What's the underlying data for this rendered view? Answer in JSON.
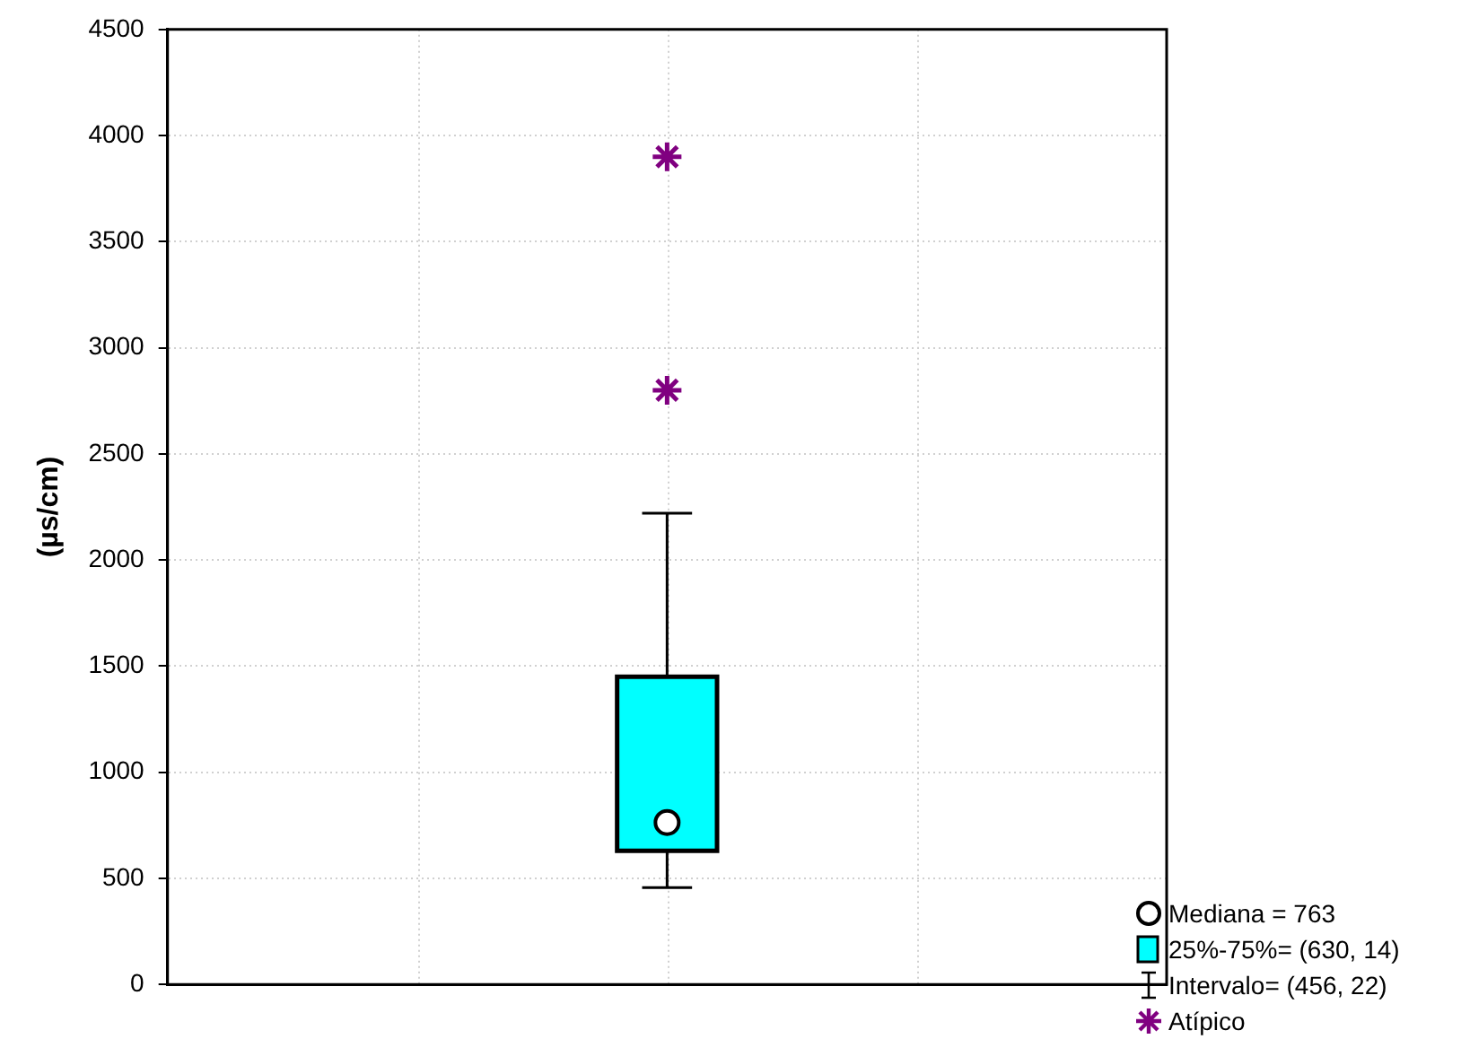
{
  "chart_data": {
    "type": "box",
    "ylabel": "(µs/cm)",
    "categories": [
      null
    ],
    "series": [
      {
        "color": "#00ffff",
        "boxes": [
          {
            "low": 456,
            "q1": 630,
            "median": 763,
            "q3": 1450,
            "high": 2220,
            "outliers": [
              2800,
              3900
            ]
          }
        ]
      }
    ],
    "ylim": [
      0,
      4500
    ],
    "yticks": [
      0,
      500,
      1000,
      1500,
      2000,
      2500,
      3000,
      3500,
      4000,
      4500
    ],
    "grid": true,
    "annotations": [
      "Mediana = 763",
      "25%-75%= (630, 14)",
      "Intervalo= (456, 22)",
      "Atípico"
    ]
  }
}
